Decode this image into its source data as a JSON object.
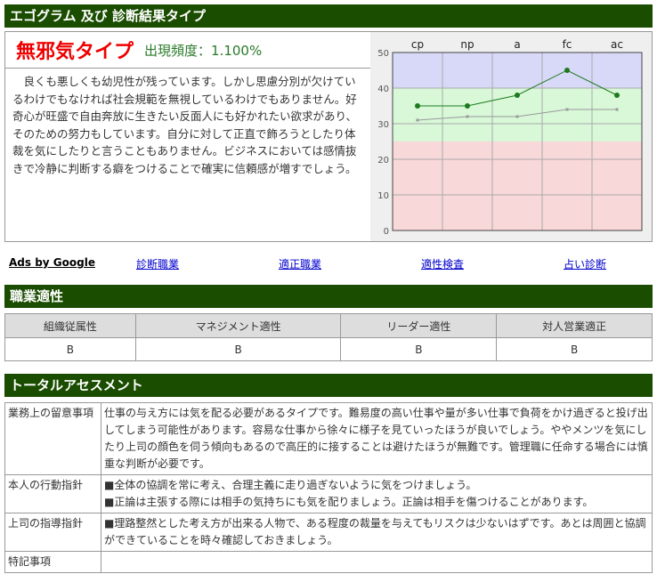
{
  "section1": {
    "title": "エゴグラム 及び 診断結果タイプ"
  },
  "result": {
    "type_name": "無邪気タイプ",
    "frequency": "出現頻度：1.100%",
    "description": "良くも悪しくも幼児性が残っています。しかし思慮分別が欠けているわけでもなければ社会規範を無視しているわけでもありません。好奇心が旺盛で自由奔放に生きたい反面人にも好かれたい欲求があり、そのための努力もしています。自分に対して正直で飾ろうとしたり体裁を気にしたりと言うこともありません。ビジネスにおいては感情抜きで冷静に判断する癖をつけることで確実に信頼感が増すでしょう。"
  },
  "chart_data": {
    "type": "line",
    "categories": [
      "cp",
      "np",
      "a",
      "fc",
      "ac"
    ],
    "ylim": [
      0,
      50
    ],
    "yticks": [
      0,
      10,
      20,
      30,
      40,
      50
    ],
    "grid": true,
    "bands": [
      {
        "from": 0,
        "to": 25,
        "color": "#f8d8d8"
      },
      {
        "from": 25,
        "to": 40,
        "color": "#d8f8d8"
      },
      {
        "from": 40,
        "to": 50,
        "color": "#d8d8f8"
      }
    ],
    "series": [
      {
        "values": [
          35,
          35,
          38,
          45,
          38
        ],
        "color": "#1e7a1e"
      },
      {
        "values": [
          31,
          32,
          32,
          34,
          34
        ],
        "color": "#999999"
      }
    ]
  },
  "ads": {
    "label": "Ads by Google",
    "links": [
      "診断職業",
      "適正職業",
      "適性検査",
      "占い診断"
    ]
  },
  "section2": {
    "title": "職業適性",
    "headers": [
      "組織従属性",
      "マネジメント適性",
      "リーダー適性",
      "対人営業適正"
    ],
    "values": [
      "B",
      "B",
      "B",
      "B"
    ]
  },
  "section3": {
    "title": "トータルアセスメント",
    "rows": [
      {
        "label": "業務上の留意事項",
        "lines": [
          "仕事の与え方には気を配る必要があるタイプです。難易度の高い仕事や量が多い仕事で負荷をかけ過ぎると投げ出してしまう可能性があります。容易な仕事から徐々に様子を見ていったほうが良いでしょう。ややメンツを気にしたり上司の顔色を伺う傾向もあるので高圧的に接することは避けたほうが無難です。管理職に任命する場合には慎重な判断が必要です。"
        ]
      },
      {
        "label": "本人の行動指針",
        "lines": [
          "■全体の協調を常に考え、合理主義に走り過ぎないように気をつけましょう。",
          "■正論は主張する際には相手の気持ちにも気を配りましょう。正論は相手を傷つけることがあります。"
        ]
      },
      {
        "label": "上司の指導指針",
        "lines": [
          "■理路整然とした考え方が出来る人物で、ある程度の裁量を与えてもリスクは少ないはずです。あとは周囲と協調ができていることを時々確認しておきましょう。"
        ]
      },
      {
        "label": "特記事項",
        "lines": [
          ""
        ]
      }
    ]
  }
}
